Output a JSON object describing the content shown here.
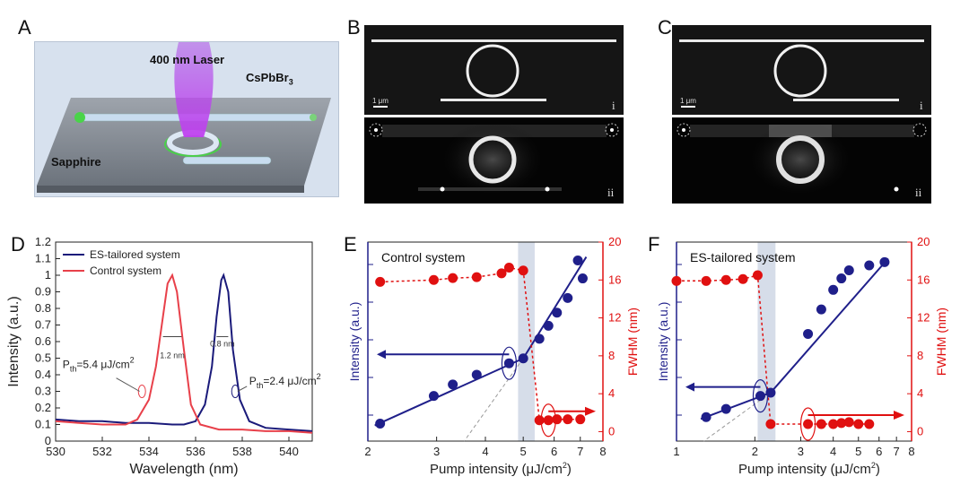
{
  "panels": {
    "A": "A",
    "B": "B",
    "C": "C",
    "D": "D",
    "E": "E",
    "F": "F"
  },
  "schematic": {
    "laser_label": "400 nm Laser",
    "material_label": "CsPbBr",
    "material_sub": "3",
    "substrate_label": "Sapphire"
  },
  "micro_B": {
    "scale": "1 μm",
    "top_tag": "i",
    "bottom_tag": "ii"
  },
  "micro_C": {
    "scale": "1 μm",
    "top_tag": "i",
    "bottom_tag": "ii"
  },
  "colors": {
    "es": "#1a1a7a",
    "control": "#e8404a",
    "fwhm": "#e01010",
    "intensity": "#1f1f8a",
    "shade": "#c8d2e2"
  },
  "chart_data": [
    {
      "type": "line",
      "id": "D",
      "xlabel": "Wavelength (nm)",
      "ylabel": "Intensity (a.u.)",
      "xlim": [
        530,
        541
      ],
      "ylim": [
        0,
        1.2
      ],
      "xticks": [
        530,
        532,
        534,
        536,
        538,
        540
      ],
      "yticks": [
        0,
        0.1,
        0.2,
        0.3,
        0.4,
        0.5,
        0.6,
        0.7,
        0.8,
        0.9,
        1,
        1.1,
        1.2
      ],
      "legend": "top-left",
      "series": [
        {
          "name": "ES-tailored system",
          "color": "#1a1a7a",
          "x": [
            530,
            531,
            532,
            533,
            534,
            535,
            535.5,
            536,
            536.4,
            536.7,
            536.9,
            537.1,
            537.2,
            537.4,
            537.6,
            537.9,
            538.3,
            539,
            540,
            541
          ],
          "y": [
            0.13,
            0.12,
            0.12,
            0.11,
            0.11,
            0.1,
            0.1,
            0.12,
            0.22,
            0.45,
            0.75,
            0.97,
            1.0,
            0.9,
            0.55,
            0.25,
            0.12,
            0.08,
            0.07,
            0.06
          ]
        },
        {
          "name": "Control system",
          "color": "#e8404a",
          "x": [
            530,
            531,
            532,
            533,
            533.5,
            534,
            534.3,
            534.6,
            534.8,
            535,
            535.2,
            535.5,
            535.8,
            536.2,
            537,
            538,
            539,
            540,
            541
          ],
          "y": [
            0.12,
            0.11,
            0.1,
            0.1,
            0.13,
            0.25,
            0.45,
            0.75,
            0.95,
            1.0,
            0.9,
            0.55,
            0.22,
            0.1,
            0.07,
            0.07,
            0.06,
            0.06,
            0.05
          ]
        }
      ],
      "annotations": {
        "control_width": "1.2 nm",
        "es_width": "0.8 nm",
        "control_pth": "P",
        "control_pth_sub": "th",
        "control_pth_val": "=5.4 μJ/cm",
        "es_pth": "P",
        "es_pth_sub": "th",
        "es_pth_val": "=2.4 μJ/cm",
        "sup": "2"
      }
    },
    {
      "type": "scatter",
      "id": "E",
      "title": "Control system",
      "xlabel": "Pump intensity (μJ/cm",
      "xlabel_sup": "2",
      "xlabel_end": ")",
      "ylabel_left": "Intensity (a.u.)",
      "ylabel_right": "FWHM (nm)",
      "xscale": "log",
      "xlim": [
        2,
        8
      ],
      "xticks": [
        2,
        3,
        4,
        5,
        6,
        7,
        8
      ],
      "ylim_right": [
        -1,
        20
      ],
      "yticks_right": [
        0,
        4,
        8,
        12,
        16,
        20
      ],
      "threshold_range": [
        4.85,
        5.35
      ],
      "intensity_points": {
        "x": [
          2.15,
          2.95,
          3.3,
          3.8,
          4.6,
          5.0,
          5.5,
          5.8,
          6.1,
          6.5,
          6.9,
          7.1
        ],
        "y": [
          0.03,
          0.2,
          0.27,
          0.33,
          0.4,
          0.43,
          0.55,
          0.63,
          0.71,
          0.8,
          1.03,
          0.92
        ]
      },
      "fwhm_points": {
        "x": [
          2.15,
          2.95,
          3.3,
          3.8,
          4.4,
          4.6,
          5.0,
          5.5,
          5.8,
          6.1,
          6.5,
          7.0
        ],
        "y": [
          15.8,
          16.0,
          16.2,
          16.3,
          16.7,
          17.3,
          17.0,
          1.2,
          1.2,
          1.3,
          1.3,
          1.3
        ]
      }
    },
    {
      "type": "scatter",
      "id": "F",
      "title": "ES-tailored system",
      "xlabel": "Pump intensity (μJ/cm",
      "xlabel_sup": "2",
      "xlabel_end": ")",
      "ylabel_left": "Intensity (a.u.)",
      "ylabel_right": "FWHM (nm)",
      "xscale": "log",
      "xlim": [
        1,
        8
      ],
      "xticks": [
        1,
        2,
        3,
        4,
        5,
        6,
        7,
        8
      ],
      "ylim_right": [
        -1,
        20
      ],
      "yticks_right": [
        0,
        4,
        8,
        12,
        16,
        20
      ],
      "threshold_range": [
        2.05,
        2.4
      ],
      "intensity_points": {
        "x": [
          1.3,
          1.55,
          2.1,
          2.3,
          3.2,
          3.6,
          4.0,
          4.3,
          4.6,
          5.5,
          6.3
        ],
        "y": [
          0.07,
          0.12,
          0.2,
          0.22,
          0.58,
          0.73,
          0.85,
          0.92,
          0.97,
          1.0,
          1.02
        ]
      },
      "fwhm_points": {
        "x": [
          1.0,
          1.3,
          1.55,
          1.8,
          2.05,
          2.3,
          3.2,
          3.6,
          4.0,
          4.3,
          4.6,
          5.0,
          5.5
        ],
        "y": [
          15.9,
          15.9,
          16.0,
          16.1,
          16.5,
          0.8,
          0.8,
          0.8,
          0.8,
          0.9,
          1.0,
          0.8,
          0.8
        ]
      }
    }
  ]
}
